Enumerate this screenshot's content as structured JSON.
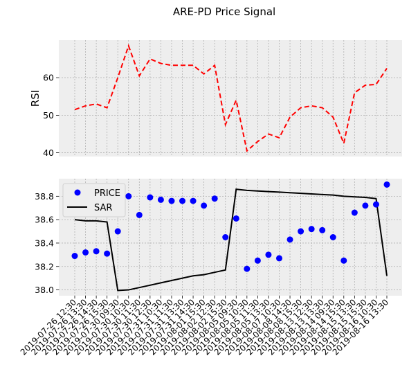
{
  "chart_data": {
    "title": "ARE-PD Price Signal",
    "x": [
      "2019-07-26 12:30",
      "2019-07-26 13:30",
      "2019-07-26 14:30",
      "2019-07-26 15:30",
      "2019-07-30 09:30",
      "2019-07-30 10:30",
      "2019-07-30 11:30",
      "2019-07-30 12:30",
      "2019-07-31 10:30",
      "2019-07-31 11:30",
      "2019-07-31 13:30",
      "2019-07-31 14:30",
      "2019-08-01 15:30",
      "2019-08-02 12:30",
      "2019-08-02 15:30",
      "2019-08-05 09:30",
      "2019-08-05 10:30",
      "2019-08-05 11:30",
      "2019-08-05 13:30",
      "2019-08-07 10:30",
      "2019-08-08 14:30",
      "2019-08-08 15:30",
      "2019-08-13 12:30",
      "2019-08-13 13:30",
      "2019-08-14 09:30",
      "2019-08-14 15:30",
      "2019-08-15 13:30",
      "2019-08-15 15:30",
      "2019-08-16 10:30",
      "2019-08-16 13:30"
    ],
    "panels": [
      {
        "type": "line",
        "ylabel": "RSI",
        "ylim": [
          39,
          70
        ],
        "yticks": [
          40,
          50,
          60
        ],
        "grid": true,
        "series": [
          {
            "values": [
              51.5,
              52.5,
              53.0,
              52.0,
              60.0,
              68.5,
              60.5,
              65.0,
              63.8,
              63.3,
              63.3,
              63.3,
              61.0,
              63.3,
              47.5,
              54.0,
              40.5,
              43.0,
              45.0,
              44.0,
              49.5,
              52.0,
              52.5,
              52.0,
              49.5,
              42.5,
              56.0,
              58.0,
              58.2,
              62.5
            ],
            "color": "#ff0000",
            "style": "dashed"
          }
        ]
      },
      {
        "type": "scatter+line",
        "ylim": [
          37.95,
          38.95
        ],
        "yticks": [
          38.0,
          38.2,
          38.4,
          38.6,
          38.8
        ],
        "grid": true,
        "legend": "top-left",
        "series": [
          {
            "name": "PRICE",
            "type": "scatter",
            "color": "#0000ff",
            "values": [
              38.29,
              38.32,
              38.33,
              38.31,
              38.5,
              38.8,
              38.64,
              38.79,
              38.77,
              38.76,
              38.76,
              38.76,
              38.72,
              38.78,
              38.45,
              38.61,
              38.18,
              38.25,
              38.3,
              38.27,
              38.43,
              38.5,
              38.52,
              38.51,
              38.45,
              38.25,
              38.66,
              38.72,
              38.73,
              38.9
            ]
          },
          {
            "name": "SAR",
            "type": "line",
            "color": "#000000",
            "values": [
              38.6,
              38.59,
              38.59,
              38.58,
              37.995,
              38.0,
              38.02,
              38.04,
              38.06,
              38.08,
              38.1,
              38.12,
              38.13,
              38.15,
              38.17,
              38.86,
              38.85,
              38.845,
              38.84,
              38.835,
              38.83,
              38.825,
              38.82,
              38.815,
              38.81,
              38.8,
              38.795,
              38.79,
              38.78,
              38.12
            ]
          }
        ]
      }
    ]
  }
}
